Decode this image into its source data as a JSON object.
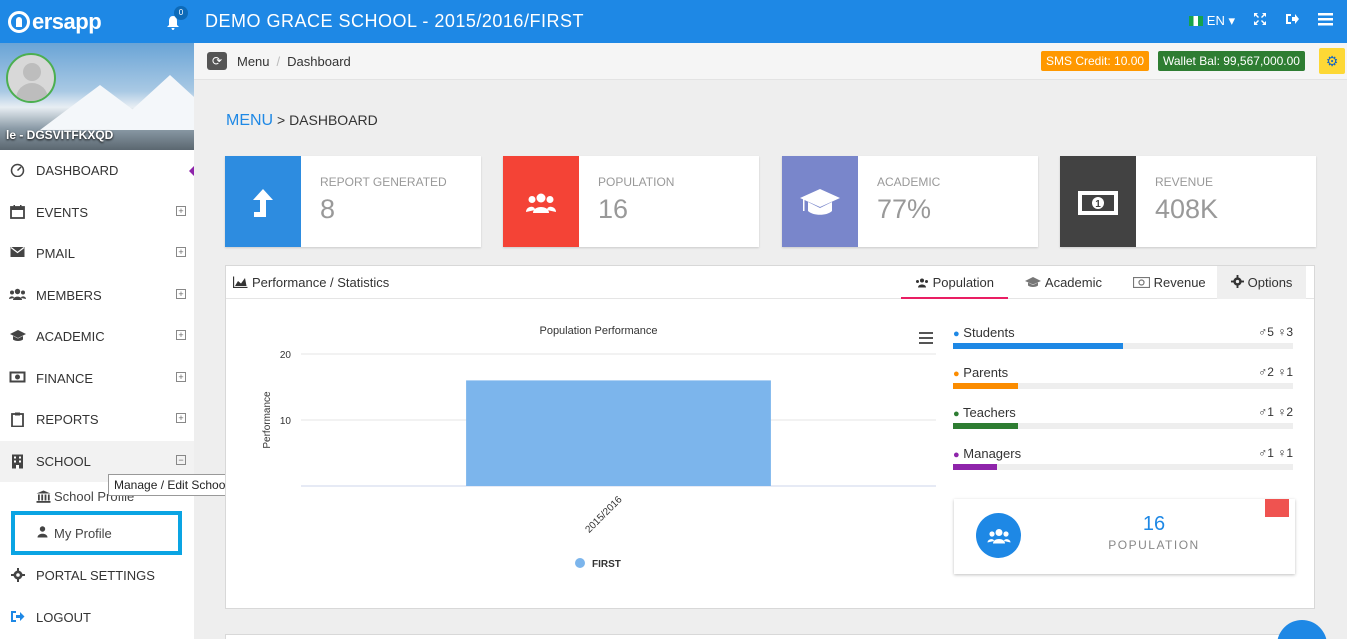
{
  "topbar": {
    "logo": "ersapp",
    "notif_count": "0",
    "title": "DEMO GRACE SCHOOL - 2015/2016/FIRST",
    "language": "EN"
  },
  "profile": {
    "name": "le - DGSVITFKXQD"
  },
  "sidebar": {
    "items": [
      {
        "label": "DASHBOARD",
        "icon": "dashboard-icon"
      },
      {
        "label": "EVENTS",
        "icon": "calendar-icon"
      },
      {
        "label": "PMAIL",
        "icon": "envelope-icon"
      },
      {
        "label": "MEMBERS",
        "icon": "users-icon"
      },
      {
        "label": "ACADEMIC",
        "icon": "graduation-cap-icon"
      },
      {
        "label": "FINANCE",
        "icon": "money-icon"
      },
      {
        "label": "REPORTS",
        "icon": "clipboard-icon"
      },
      {
        "label": "SCHOOL",
        "icon": "building-icon"
      }
    ],
    "sub_items": [
      {
        "label": "School Profile",
        "icon": "institution-icon"
      },
      {
        "label": "My Profile",
        "icon": "user-icon"
      }
    ],
    "bottom_items": [
      {
        "label": "PORTAL SETTINGS",
        "icon": "gear-icon"
      },
      {
        "label": "LOGOUT",
        "icon": "sign-out-icon"
      }
    ],
    "tooltip": "Manage / Edit School Information"
  },
  "breadcrumb": {
    "items": [
      "Menu",
      "Dashboard"
    ]
  },
  "balances": {
    "sms": "SMS Credit: 10.00",
    "wallet": "Wallet Bal: 99,567,000.00"
  },
  "heading": {
    "menu": "MENU",
    "rest": "> DASHBOARD"
  },
  "cards": [
    {
      "label": "REPORT GENERATED",
      "value": "8",
      "color": "#2d8ce0",
      "icon": "arrow-up-icon"
    },
    {
      "label": "POPULATION",
      "value": "16",
      "color": "#f44336",
      "icon": "users-icon"
    },
    {
      "label": "ACADEMIC",
      "value": "77%",
      "color": "#7986cb",
      "icon": "graduation-cap-icon"
    },
    {
      "label": "REVENUE",
      "value": "408K",
      "color": "#424242",
      "icon": "money-icon"
    }
  ],
  "panel": {
    "title": "Performance / Statistics",
    "tabs": [
      "Population",
      "Academic",
      "Revenue",
      "Options"
    ]
  },
  "chart_data": {
    "type": "bar",
    "title": "Population Performance",
    "categories": [
      "2015/2016"
    ],
    "series": [
      {
        "name": "FIRST",
        "values": [
          16
        ]
      }
    ],
    "ylabel": "Performance",
    "ylim": [
      0,
      20
    ],
    "yticks": [
      10,
      20
    ],
    "color": "#7cb5ec"
  },
  "stats": [
    {
      "name": "Students",
      "male": "5",
      "female": "3",
      "fraction": 0.5,
      "color": "#1e88e5"
    },
    {
      "name": "Parents",
      "male": "2",
      "female": "1",
      "fraction": 0.19,
      "color": "#fb8c00"
    },
    {
      "name": "Teachers",
      "male": "1",
      "female": "2",
      "fraction": 0.19,
      "color": "#2e7d32"
    },
    {
      "name": "Managers",
      "male": "1",
      "female": "1",
      "fraction": 0.13,
      "color": "#8e24aa"
    }
  ],
  "population_card": {
    "value": "16",
    "label": "POPULATION"
  }
}
